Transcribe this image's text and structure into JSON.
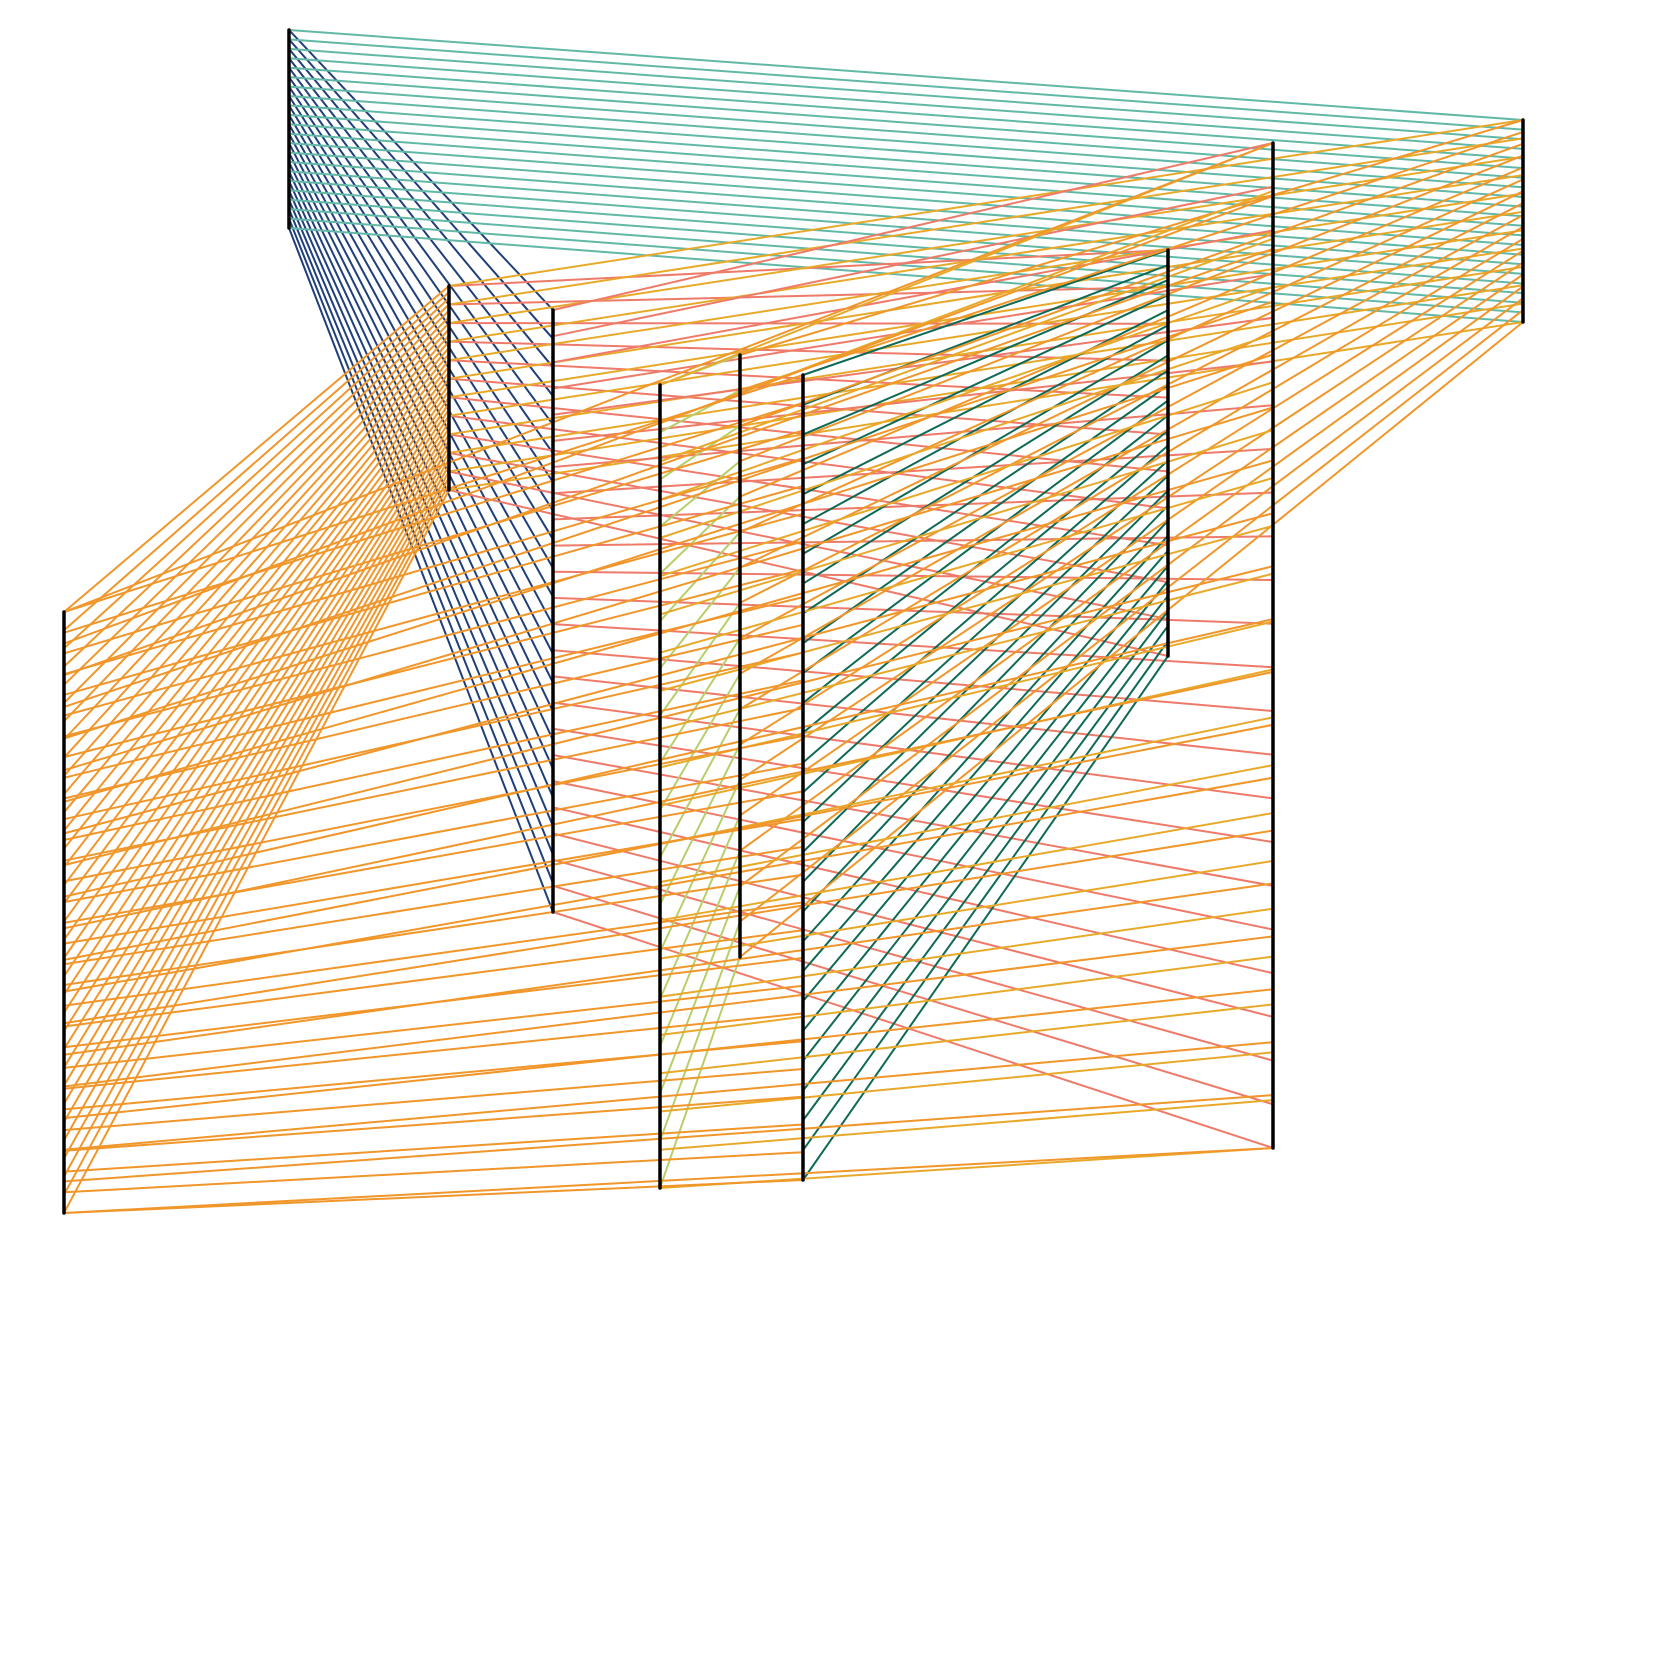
{
  "diagram": {
    "type": "string-art",
    "colors": {
      "background": "#ffffff",
      "post": "#000000",
      "navy": "#1f3f7a",
      "teal": "#62b8a6",
      "dark_green": "#0e6a55",
      "orange": "#f0962a",
      "salmon": "#ee7a6a",
      "gold": "#e8a92a",
      "yellow_green": "#b7cf6a"
    },
    "posts": [
      "P1",
      "P2",
      "P3",
      "P4",
      "P5",
      "P6",
      "P7",
      "P8",
      "P9",
      "P10"
    ],
    "links": [
      {
        "from": "P1",
        "to": "P3",
        "color": "navy",
        "threads": 22
      },
      {
        "from": "P1",
        "to": "P10",
        "color": "teal",
        "threads": 22
      },
      {
        "from": "P2",
        "to": "P8",
        "color": "salmon",
        "threads": 12
      },
      {
        "from": "P2",
        "to": "P10",
        "color": "gold",
        "threads": 12
      },
      {
        "from": "P3",
        "to": "P9",
        "color": "salmon",
        "threads": 24
      },
      {
        "from": "P4",
        "to": "P5",
        "color": "yellow_green",
        "threads": 18
      },
      {
        "from": "P7",
        "to": "P8",
        "color": "dark_green",
        "threads": 28
      },
      {
        "from": "P5",
        "to": "P10",
        "color": "orange",
        "threads": 18
      },
      {
        "from": "P4",
        "to": "P9",
        "color": "gold",
        "threads": 22
      },
      {
        "from": "P6",
        "to": "P2",
        "color": "orange",
        "threads": 34
      },
      {
        "from": "P6",
        "to": "P7",
        "color": "orange",
        "threads": 30
      },
      {
        "from": "P9",
        "to": "P6",
        "color": "orange",
        "threads": 20
      }
    ]
  }
}
